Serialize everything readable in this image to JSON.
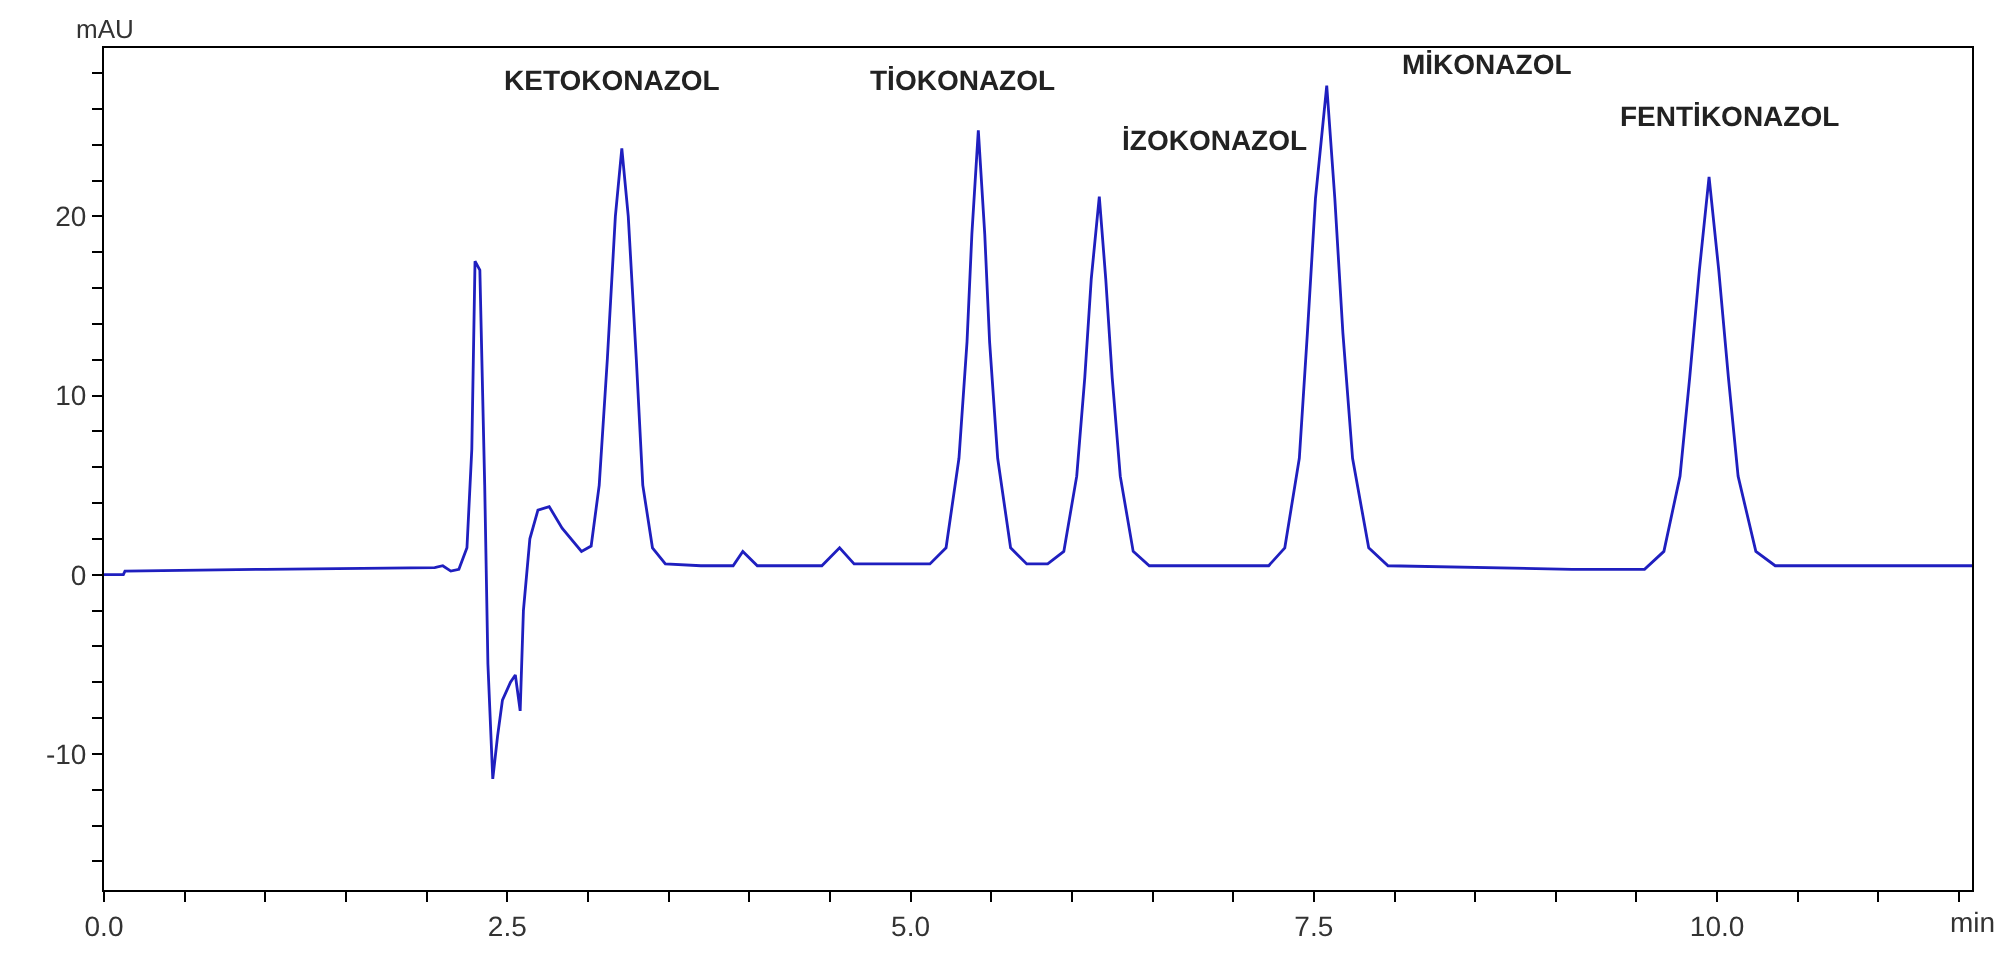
{
  "chart_data": {
    "type": "line",
    "xlabel": "min",
    "ylabel": "mAU",
    "x": [
      0,
      0.12,
      0.13,
      1.0,
      2.05,
      2.1,
      2.15,
      2.2,
      2.25,
      2.28,
      2.3,
      2.33,
      2.36,
      2.38,
      2.41,
      2.44,
      2.47,
      2.52,
      2.55,
      2.58,
      2.6,
      2.64,
      2.69,
      2.76,
      2.84,
      2.96,
      3.02,
      3.07,
      3.12,
      3.17,
      3.21,
      3.25,
      3.3,
      3.34,
      3.4,
      3.48,
      3.7,
      3.9,
      3.96,
      4.05,
      4.45,
      4.56,
      4.65,
      5.12,
      5.22,
      5.3,
      5.35,
      5.38,
      5.42,
      5.46,
      5.49,
      5.54,
      5.62,
      5.72,
      5.85,
      5.95,
      6.03,
      6.08,
      6.12,
      6.17,
      6.21,
      6.25,
      6.3,
      6.38,
      6.48,
      7.22,
      7.32,
      7.41,
      7.46,
      7.51,
      7.58,
      7.63,
      7.68,
      7.74,
      7.84,
      7.96,
      9.1,
      9.55,
      9.67,
      9.77,
      9.83,
      9.89,
      9.95,
      10.01,
      10.07,
      10.13,
      10.24,
      10.36,
      11.58
    ],
    "series": [
      {
        "color": "#1f1fbf",
        "values": [
          0,
          0,
          0.2,
          0.3,
          0.4,
          0.5,
          0.2,
          0.3,
          1.5,
          7,
          17.5,
          17,
          5,
          -5,
          -11.4,
          -9,
          -7,
          -6,
          -5.6,
          -7.6,
          -2,
          2,
          3.6,
          3.8,
          2.6,
          1.3,
          1.6,
          5,
          12,
          20,
          23.8,
          20,
          12,
          5,
          1.5,
          0.6,
          0.5,
          0.5,
          1.3,
          0.5,
          0.5,
          1.5,
          0.6,
          0.6,
          1.5,
          6.5,
          13,
          19,
          24.8,
          19,
          13,
          6.5,
          1.5,
          0.6,
          0.6,
          1.3,
          5.5,
          11,
          16.5,
          21.1,
          16.5,
          11,
          5.5,
          1.3,
          0.5,
          0.5,
          1.5,
          6.5,
          13.5,
          21,
          27.3,
          21,
          13.5,
          6.5,
          1.5,
          0.5,
          0.3,
          0.3,
          1.3,
          5.5,
          11,
          17,
          22.2,
          17,
          11,
          5.5,
          1.3,
          0.5,
          0.5
        ]
      }
    ],
    "xlim": [
      0,
      11.58
    ],
    "xticks": [
      {
        "value": 0,
        "label": "0.0"
      },
      {
        "value": 0.5,
        "label": null
      },
      {
        "value": 1,
        "label": null
      },
      {
        "value": 1.5,
        "label": null
      },
      {
        "value": 2,
        "label": null
      },
      {
        "value": 2.5,
        "label": "2.5"
      },
      {
        "value": 3,
        "label": null
      },
      {
        "value": 3.5,
        "label": null
      },
      {
        "value": 4,
        "label": null
      },
      {
        "value": 4.5,
        "label": null
      },
      {
        "value": 5,
        "label": "5.0"
      },
      {
        "value": 5.5,
        "label": null
      },
      {
        "value": 6,
        "label": null
      },
      {
        "value": 6.5,
        "label": null
      },
      {
        "value": 7,
        "label": null
      },
      {
        "value": 7.5,
        "label": "7.5"
      },
      {
        "value": 8,
        "label": null
      },
      {
        "value": 8.5,
        "label": null
      },
      {
        "value": 9,
        "label": null
      },
      {
        "value": 9.5,
        "label": null
      },
      {
        "value": 10,
        "label": "10.0"
      },
      {
        "value": 10.5,
        "label": null
      },
      {
        "value": 11,
        "label": null
      },
      {
        "value": 11.5,
        "label": null
      }
    ],
    "ylim": [
      -17.6,
      29.4
    ],
    "yticks": [
      {
        "value": -16,
        "label": null
      },
      {
        "value": -14,
        "label": null
      },
      {
        "value": -12,
        "label": null
      },
      -10,
      {
        "value": -8,
        "label": null
      },
      {
        "value": -6,
        "label": null
      },
      {
        "value": -4,
        "label": null
      },
      {
        "value": -2,
        "label": null
      },
      0,
      {
        "value": 2,
        "label": null
      },
      {
        "value": 4,
        "label": null
      },
      {
        "value": 6,
        "label": null
      },
      {
        "value": 8,
        "label": null
      },
      10,
      {
        "value": 12,
        "label": null
      },
      {
        "value": 14,
        "label": null
      },
      {
        "value": 16,
        "label": null
      },
      {
        "value": 18,
        "label": null
      },
      20,
      {
        "value": 22,
        "label": null
      },
      {
        "value": 24,
        "label": null
      },
      {
        "value": 26,
        "label": null
      },
      {
        "value": 28,
        "label": null
      }
    ],
    "annotations": [
      {
        "text": "KETOKONAZOL",
        "x": 3.21,
        "y": 23.8
      },
      {
        "text": "TİOKONAZOL",
        "x": 5.42,
        "y": 24.8
      },
      {
        "text": "İZOKONAZOL",
        "x": 6.17,
        "y": 21.1
      },
      {
        "text": "MİKONAZOL",
        "x": 7.58,
        "y": 27.3
      },
      {
        "text": "FENTİKONAZOL",
        "x": 9.95,
        "y": 22.2
      }
    ],
    "marker": "none",
    "line_style": "solid"
  }
}
